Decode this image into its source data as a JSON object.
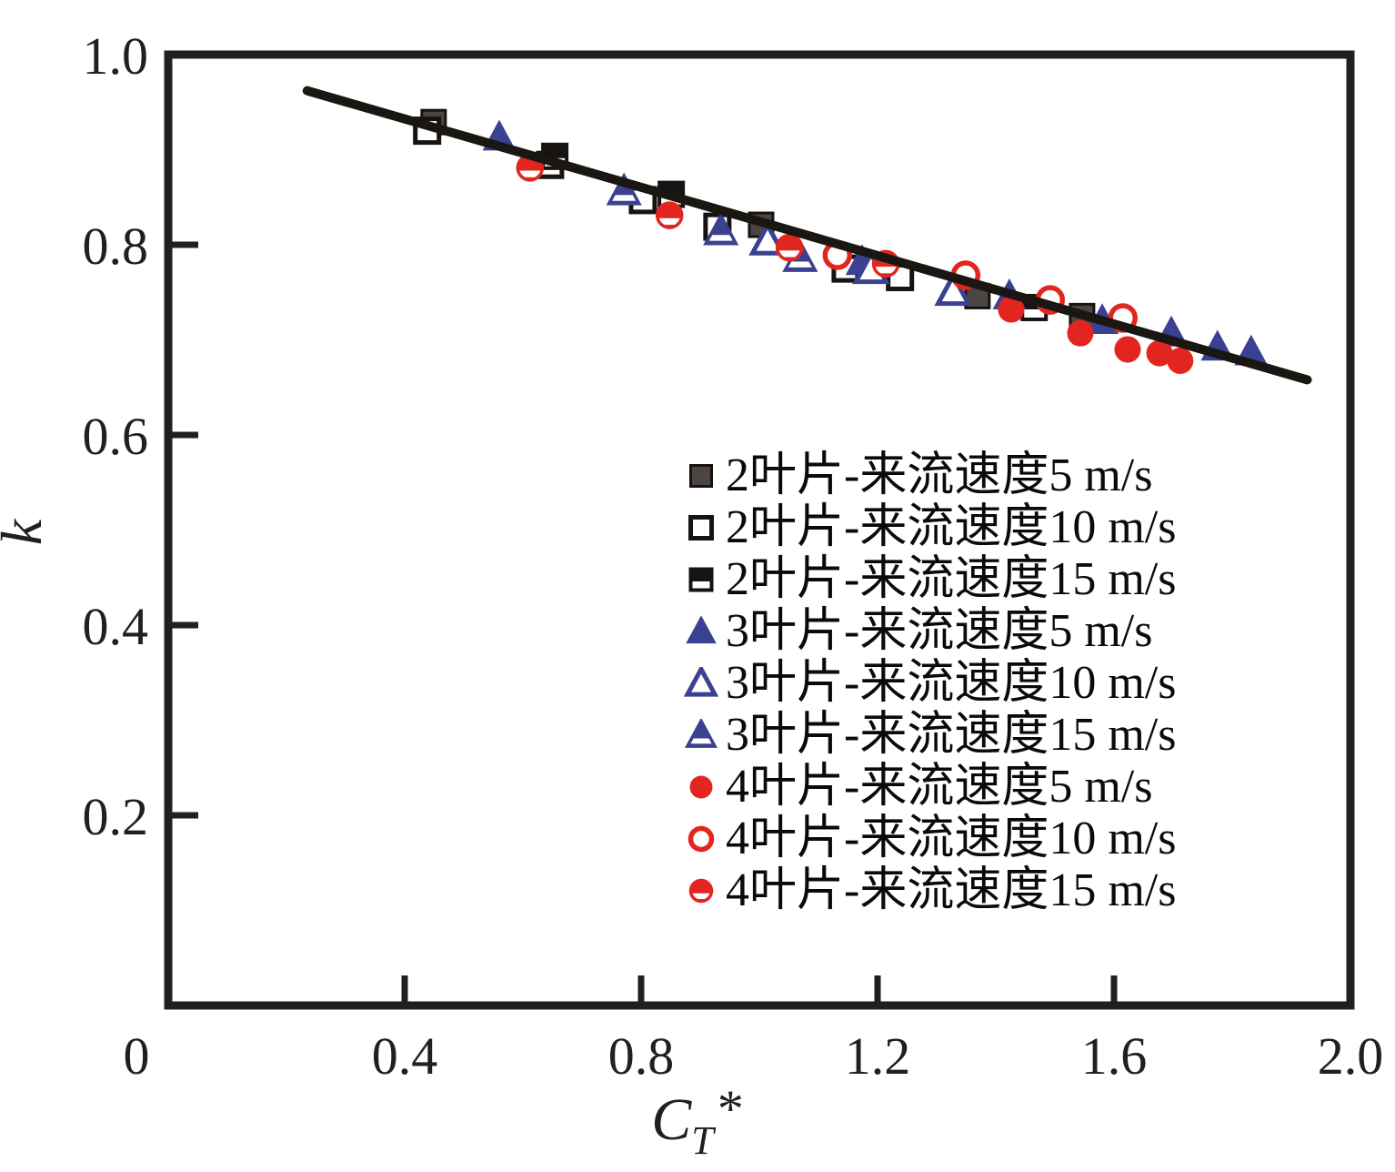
{
  "figure": {
    "background": "#ffffff",
    "axis_color": "#231f1c"
  },
  "chart_data": {
    "type": "scatter",
    "title": "",
    "xlabel": "C_T*",
    "xlabel_c": "C",
    "xlabel_sub": "T",
    "xlabel_star": "*",
    "ylabel": "k",
    "xlim": [
      0,
      2.0
    ],
    "ylim": [
      0,
      1.0
    ],
    "xticks": [
      0,
      0.4,
      0.8,
      1.2,
      1.6,
      2.0
    ],
    "xtick_labels": [
      "0",
      "0.4",
      "0.8",
      "1.2",
      "1.6",
      "2.0"
    ],
    "yticks": [
      0.2,
      0.4,
      0.6,
      0.8,
      1.0
    ],
    "ytick_labels": [
      "0.2",
      "0.4",
      "0.6",
      "0.8",
      "1.0"
    ],
    "grid": false,
    "legend_position": "inside lower-right",
    "fit_line": {
      "color": "#1a1612",
      "x1": 0.235,
      "y1": 0.962,
      "x2": 1.927,
      "y2": 0.658
    },
    "series": [
      {
        "name": "2叶片-来流速度5 m/s",
        "marker": "square-filled",
        "color": "#4c4541",
        "edge_color": "#161311",
        "points": [
          [
            0.449,
            0.929
          ],
          [
            1.003,
            0.821
          ],
          [
            1.369,
            0.746
          ],
          [
            1.546,
            0.725
          ]
        ]
      },
      {
        "name": "2叶片-来流速度10 m/s",
        "marker": "square-open",
        "color": "#161311",
        "edge_color": "#161311",
        "points": [
          [
            0.438,
            0.92
          ],
          [
            0.646,
            0.884
          ],
          [
            0.803,
            0.847
          ],
          [
            0.929,
            0.819
          ],
          [
            1.146,
            0.775
          ],
          [
            1.238,
            0.766
          ]
        ]
      },
      {
        "name": "2叶片-来流速度15 m/s",
        "marker": "square-half",
        "color": "#161311",
        "edge_color": "#161311",
        "points": [
          [
            0.654,
            0.893
          ],
          [
            0.851,
            0.853
          ],
          [
            1.465,
            0.734
          ]
        ]
      },
      {
        "name": "3叶片-来流速度5 m/s",
        "marker": "triangle-filled",
        "color": "#3b4191",
        "edge_color": "#3b4191",
        "points": [
          [
            0.56,
            0.913
          ],
          [
            1.174,
            0.782
          ],
          [
            1.423,
            0.746
          ],
          [
            1.58,
            0.72
          ],
          [
            1.697,
            0.707
          ],
          [
            1.775,
            0.692
          ],
          [
            1.832,
            0.687
          ]
        ]
      },
      {
        "name": "3叶片-来流速度10 m/s",
        "marker": "triangle-open",
        "color": "#3b4191",
        "edge_color": "#3b4191",
        "points": [
          [
            1.014,
            0.804
          ],
          [
            1.189,
            0.774
          ],
          [
            1.328,
            0.751
          ]
        ]
      },
      {
        "name": "3叶片-来流速度15 m/s",
        "marker": "triangle-half",
        "color": "#3b4191",
        "edge_color": "#3b4191",
        "points": [
          [
            0.771,
            0.856
          ],
          [
            0.935,
            0.814
          ],
          [
            1.069,
            0.786
          ]
        ]
      },
      {
        "name": "4叶片-来流速度5 m/s",
        "marker": "circle-filled",
        "color": "#e2261f",
        "edge_color": "#e2261f",
        "points": [
          [
            1.426,
            0.732
          ],
          [
            1.543,
            0.707
          ],
          [
            1.623,
            0.69
          ],
          [
            1.677,
            0.686
          ],
          [
            1.712,
            0.678
          ]
        ]
      },
      {
        "name": "4叶片-来流速度10 m/s",
        "marker": "circle-open",
        "color": "#e2261f",
        "edge_color": "#e2261f",
        "points": [
          [
            1.132,
            0.789
          ],
          [
            1.349,
            0.768
          ],
          [
            1.492,
            0.742
          ],
          [
            1.615,
            0.723
          ]
        ]
      },
      {
        "name": "4叶片-来流速度15 m/s",
        "marker": "circle-half",
        "color": "#e2261f",
        "edge_color": "#e2261f",
        "points": [
          [
            0.612,
            0.881
          ],
          [
            0.848,
            0.831
          ],
          [
            1.051,
            0.797
          ],
          [
            1.214,
            0.78
          ]
        ]
      }
    ]
  }
}
